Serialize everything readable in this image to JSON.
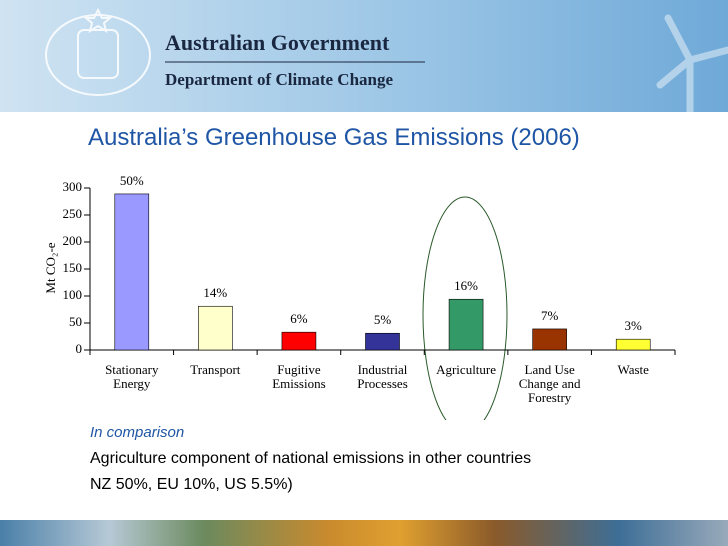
{
  "header": {
    "organization": "Australian Government",
    "department": "Department of Climate Change"
  },
  "chart_data": {
    "type": "bar",
    "title": "Australia’s Greenhouse Gas Emissions (2006)",
    "y_label": "Mt CO₂-e",
    "categories": [
      "Stationary Energy",
      "Transport",
      "Fugitive Emissions",
      "Industrial Processes",
      "Agriculture",
      "Land Use Change and Forestry",
      "Waste"
    ],
    "values": [
      289,
      81,
      33,
      31,
      94,
      39,
      20
    ],
    "shares": [
      {
        "value": 50,
        "label": "50%"
      },
      {
        "value": 14,
        "label": "14%"
      },
      {
        "value": 6,
        "label": "6%"
      },
      {
        "value": 5,
        "label": "5%"
      },
      {
        "value": 16,
        "label": "16%"
      },
      {
        "value": 7,
        "label": "7%"
      },
      {
        "value": 3,
        "label": "3%"
      }
    ],
    "colors": [
      "#9999ff",
      "#ffffcc",
      "#ff0000",
      "#333399",
      "#339966",
      "#993300",
      "#ffff33"
    ],
    "ylim": [
      0,
      300
    ],
    "yticks": [
      0,
      50,
      100,
      150,
      200,
      250,
      300
    ]
  },
  "notes": {
    "heading": "In comparison",
    "lines": [
      "Agriculture component of national emissions in other countries",
      "NZ 50%, EU 10%, US 5.5%)"
    ]
  }
}
